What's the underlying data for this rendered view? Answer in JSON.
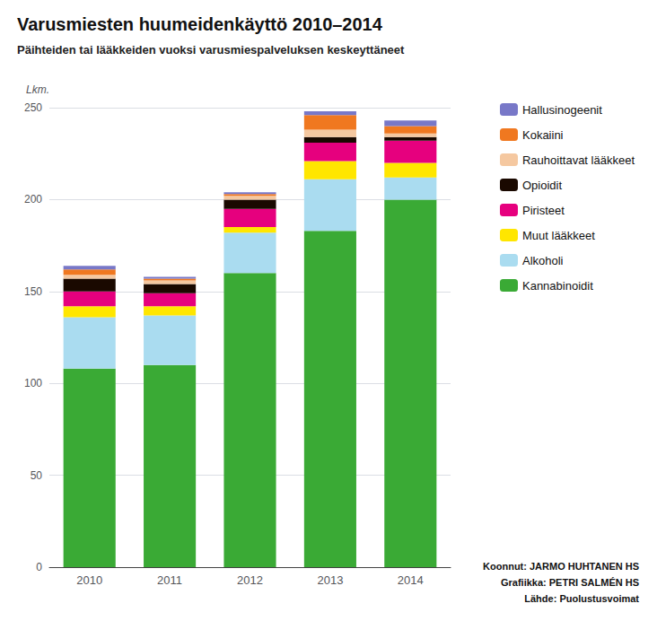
{
  "chart_data": {
    "type": "bar",
    "title": "Varusmiesten huumeidenkäyttö 2010–2014",
    "subtitle": "Päihteiden tai lääkkeiden vuoksi varusmiespalveluksen keskeyttäneet",
    "ylabel": "Lkm.",
    "categories": [
      "2010",
      "2011",
      "2012",
      "2013",
      "2014"
    ],
    "series": [
      {
        "name": "Kannabinoidit",
        "color": "#3aaa35",
        "values": [
          108,
          110,
          160,
          183,
          200
        ]
      },
      {
        "name": "Alkoholi",
        "color": "#aadcf0",
        "values": [
          28,
          27,
          22,
          28,
          12
        ]
      },
      {
        "name": "Muut lääkkeet",
        "color": "#ffe600",
        "values": [
          6,
          5,
          3,
          10,
          8
        ]
      },
      {
        "name": "Piristeet",
        "color": "#e6007e",
        "values": [
          8,
          7,
          10,
          10,
          12
        ]
      },
      {
        "name": "Opioidit",
        "color": "#1a0900",
        "values": [
          7,
          5,
          5,
          3,
          2
        ]
      },
      {
        "name": "Rauhoittavat lääkkeet",
        "color": "#f5c8a0",
        "values": [
          2,
          2,
          2,
          4,
          2
        ]
      },
      {
        "name": "Kokaiini",
        "color": "#f07820",
        "values": [
          3,
          1,
          1,
          8,
          4
        ]
      },
      {
        "name": "Hallusinogeenit",
        "color": "#7878c8",
        "values": [
          2,
          1,
          1,
          2,
          3
        ]
      }
    ],
    "ylim": [
      0,
      250
    ],
    "yticks": [
      0,
      50,
      100,
      150,
      200,
      250
    ],
    "grid": true,
    "stacked": true,
    "legend": "right",
    "annotations": [
      "Koonnut: JARMO HUHTANEN HS",
      "Grafiikka: PETRI SALMÉN HS",
      "Lähde: Puolustusvoimat"
    ]
  }
}
